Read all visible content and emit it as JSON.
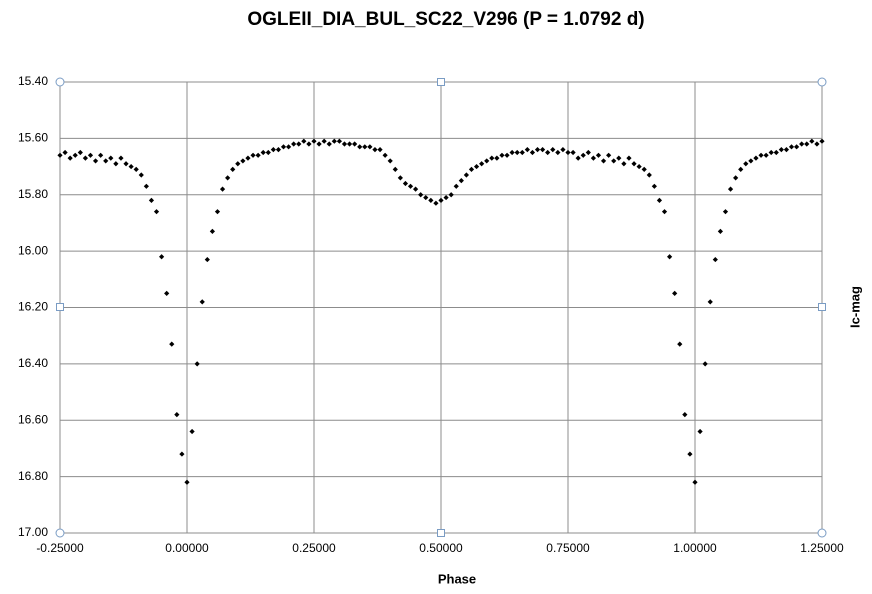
{
  "chart_data": {
    "type": "scatter",
    "title": "OGLEII_DIA_BUL_SC22_V296 (P = 1.0792 d)",
    "x_label": "Phase",
    "y_label": "Ic-mag",
    "color": "#000000",
    "grid": true,
    "y_inverted": true,
    "xlim": [
      -0.25,
      1.25
    ],
    "xticks": [
      {
        "value": -0.25,
        "label": "-0.25000"
      },
      {
        "value": 0,
        "label": "0.00000"
      },
      {
        "value": 0.25,
        "label": "0.25000"
      },
      {
        "value": 0.5,
        "label": "0.50000"
      },
      {
        "value": 0.75,
        "label": "0.75000"
      },
      {
        "value": 1,
        "label": "1.00000"
      },
      {
        "value": 1.25,
        "label": "1.25000"
      }
    ],
    "ylim": [
      15.4,
      17.0
    ],
    "yticks": [
      {
        "value": 15.4,
        "label": "15.40"
      },
      {
        "value": 15.6,
        "label": "15.60"
      },
      {
        "value": 15.8,
        "label": "15.80"
      },
      {
        "value": 16.0,
        "label": "16.00"
      },
      {
        "value": 16.2,
        "label": "16.20"
      },
      {
        "value": 16.4,
        "label": "16.40"
      },
      {
        "value": 16.6,
        "label": "16.60"
      },
      {
        "value": 16.8,
        "label": "16.80"
      },
      {
        "value": 17.0,
        "label": "17.00"
      }
    ],
    "x": [
      -0.25,
      -0.24,
      -0.23,
      -0.22,
      -0.21,
      -0.2,
      -0.19,
      -0.18,
      -0.17,
      -0.16,
      -0.15,
      -0.14,
      -0.13,
      -0.12,
      -0.11,
      -0.1,
      -0.09,
      -0.08,
      -0.07,
      -0.06,
      -0.05,
      -0.04,
      -0.03,
      -0.02,
      -0.01,
      0,
      0.01,
      0.02,
      0.03,
      0.04,
      0.05,
      0.06,
      0.07,
      0.08,
      0.09,
      0.1,
      0.11,
      0.12,
      0.13,
      0.14,
      0.15,
      0.16,
      0.17,
      0.18,
      0.19,
      0.2,
      0.21,
      0.22,
      0.23,
      0.24,
      0.25,
      0.26,
      0.27,
      0.28,
      0.29,
      0.3,
      0.31,
      0.32,
      0.33,
      0.34,
      0.35,
      0.36,
      0.37,
      0.38,
      0.39,
      0.4,
      0.41,
      0.42,
      0.43,
      0.44,
      0.45,
      0.46,
      0.47,
      0.48,
      0.49,
      0.5,
      0.51,
      0.52,
      0.53,
      0.54,
      0.55,
      0.56,
      0.57,
      0.58,
      0.59,
      0.6,
      0.61,
      0.62,
      0.63,
      0.64,
      0.65,
      0.66,
      0.67,
      0.68,
      0.69,
      0.7,
      0.71,
      0.72,
      0.73,
      0.74,
      0.75,
      0.76,
      0.77,
      0.78,
      0.79,
      0.8,
      0.81,
      0.82,
      0.83,
      0.84,
      0.85,
      0.86,
      0.87,
      0.88,
      0.89,
      0.9,
      0.91,
      0.92,
      0.93,
      0.94,
      0.95,
      0.96,
      0.97,
      0.98,
      0.99,
      1,
      1.01,
      1.02,
      1.03,
      1.04,
      1.05,
      1.06,
      1.07,
      1.08,
      1.09,
      1.1,
      1.11,
      1.12,
      1.13,
      1.14,
      1.15,
      1.16,
      1.17,
      1.18,
      1.19,
      1.2,
      1.21,
      1.22,
      1.23,
      1.24,
      1.25
    ],
    "values": [
      15.66,
      15.65,
      15.67,
      15.66,
      15.65,
      15.67,
      15.66,
      15.68,
      15.66,
      15.68,
      15.67,
      15.69,
      15.67,
      15.69,
      15.7,
      15.71,
      15.73,
      15.77,
      15.82,
      15.86,
      16.02,
      16.15,
      16.33,
      16.58,
      16.72,
      16.82,
      16.64,
      16.4,
      16.18,
      16.03,
      15.93,
      15.86,
      15.78,
      15.74,
      15.71,
      15.69,
      15.68,
      15.67,
      15.66,
      15.66,
      15.65,
      15.65,
      15.64,
      15.64,
      15.63,
      15.63,
      15.62,
      15.62,
      15.61,
      15.62,
      15.61,
      15.62,
      15.61,
      15.62,
      15.61,
      15.61,
      15.62,
      15.62,
      15.62,
      15.63,
      15.63,
      15.63,
      15.64,
      15.64,
      15.66,
      15.68,
      15.71,
      15.74,
      15.76,
      15.77,
      15.78,
      15.8,
      15.81,
      15.82,
      15.83,
      15.82,
      15.81,
      15.8,
      15.77,
      15.75,
      15.73,
      15.71,
      15.7,
      15.69,
      15.68,
      15.67,
      15.67,
      15.66,
      15.66,
      15.65,
      15.65,
      15.65,
      15.64,
      15.65,
      15.64,
      15.64,
      15.65,
      15.64,
      15.65,
      15.64,
      15.65,
      15.65,
      15.67,
      15.66,
      15.65,
      15.67,
      15.66,
      15.68,
      15.66,
      15.68,
      15.67,
      15.69,
      15.67,
      15.69,
      15.7,
      15.71,
      15.73,
      15.77,
      15.82,
      15.86,
      16.02,
      16.15,
      16.33,
      16.58,
      16.72,
      16.82,
      16.64,
      16.4,
      16.18,
      16.03,
      15.93,
      15.86,
      15.78,
      15.74,
      15.71,
      15.69,
      15.68,
      15.67,
      15.66,
      15.66,
      15.65,
      15.65,
      15.64,
      15.64,
      15.63,
      15.63,
      15.62,
      15.62,
      15.61,
      15.62,
      15.61
    ]
  }
}
